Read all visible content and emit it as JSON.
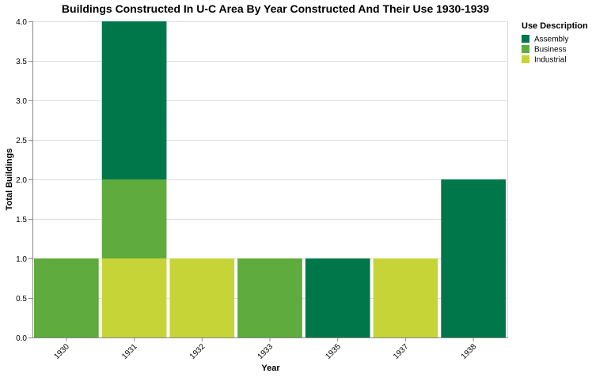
{
  "chart_data": {
    "type": "bar",
    "stacked": true,
    "title": "Buildings Constructed In U-C Area By Year Constructed And Their Use 1930-1939",
    "xlabel": "Year",
    "ylabel": "Total Buildings",
    "categories": [
      "1930",
      "1931",
      "1932",
      "1933",
      "1935",
      "1937",
      "1938"
    ],
    "ylim": [
      0,
      4
    ],
    "yticks": [
      "0.0",
      "0.5",
      "1.0",
      "1.5",
      "2.0",
      "2.5",
      "3.0",
      "3.5",
      "4.0"
    ],
    "grid": true,
    "legend_title": "Use Description",
    "legend_position": "top-right",
    "series": [
      {
        "name": "Industrial",
        "color": "#c7d437",
        "values": [
          0,
          1,
          1,
          0,
          0,
          1,
          0
        ]
      },
      {
        "name": "Business",
        "color": "#5fab3e",
        "values": [
          1,
          1,
          0,
          1,
          0,
          0,
          0
        ]
      },
      {
        "name": "Assembly",
        "color": "#00774b",
        "values": [
          0,
          2,
          0,
          0,
          1,
          0,
          2
        ]
      }
    ],
    "legend_order": [
      "Assembly",
      "Business",
      "Industrial"
    ]
  }
}
